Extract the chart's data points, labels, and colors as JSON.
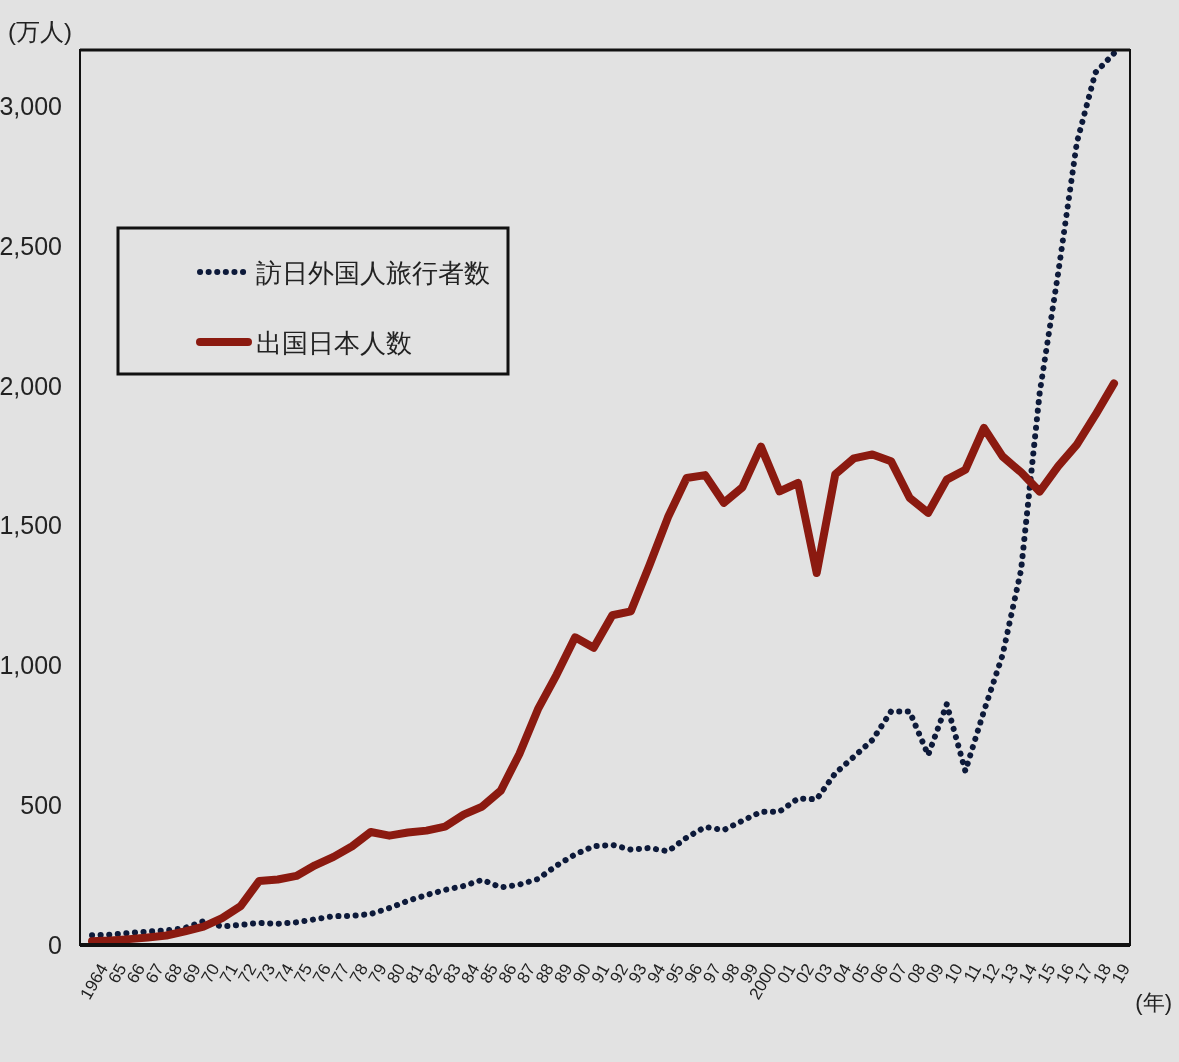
{
  "chart_data": {
    "type": "line",
    "ylabel": "(万人)",
    "xlabel": "(年)",
    "categories": [
      "1964",
      "65",
      "66",
      "67",
      "68",
      "69",
      "70",
      "71",
      "72",
      "73",
      "74",
      "75",
      "76",
      "77",
      "78",
      "79",
      "80",
      "81",
      "82",
      "83",
      "84",
      "85",
      "86",
      "87",
      "88",
      "89",
      "90",
      "91",
      "92",
      "93",
      "94",
      "95",
      "96",
      "97",
      "98",
      "99",
      "2000",
      "01",
      "02",
      "03",
      "04",
      "05",
      "06",
      "07",
      "08",
      "09",
      "10",
      "11",
      "12",
      "13",
      "14",
      "15",
      "16",
      "17",
      "18",
      "19"
    ],
    "ylim": [
      0,
      3200
    ],
    "yticks": [
      0,
      500,
      {
        "value": 1000,
        "label": "1,000"
      },
      {
        "value": 1500,
        "label": "1,500"
      },
      {
        "value": 2000,
        "label": "2,000"
      },
      {
        "value": 2500,
        "label": "2,500"
      },
      {
        "value": 3000,
        "label": "3,000"
      }
    ],
    "grid": false,
    "legend": "top left",
    "marker": "none",
    "series": [
      {
        "name": "訪日外国人旅行者数",
        "color": "#0d1a3a",
        "line_style": "dotted",
        "values": [
          35,
          37,
          43,
          48,
          52,
          61,
          85,
          66,
          72,
          79,
          76,
          81,
          92,
          103,
          104,
          111,
          132,
          158,
          179,
          197,
          211,
          233,
          206,
          216,
          236,
          284,
          324,
          353,
          358,
          341,
          347,
          335,
          384,
          422,
          411,
          444,
          476,
          477,
          524,
          521,
          614,
          673,
          733,
          835,
          835,
          679,
          861,
          622,
          836,
          1036,
          1341,
          1974,
          2404,
          2869,
          3119,
          3188
        ]
      },
      {
        "name": "出国日本人数",
        "color": "#8b1a10",
        "line_style": "solid",
        "values": [
          13,
          16,
          21,
          27,
          34,
          49,
          66,
          96,
          139,
          229,
          234,
          247,
          285,
          315,
          353,
          404,
          391,
          402,
          409,
          423,
          466,
          495,
          552,
          683,
          843,
          966,
          1100,
          1063,
          1179,
          1193,
          1358,
          1530,
          1670,
          1680,
          1581,
          1636,
          1782,
          1622,
          1652,
          1330,
          1683,
          1740,
          1754,
          1730,
          1599,
          1545,
          1664,
          1699,
          1849,
          1747,
          1690,
          1621,
          1712,
          1789,
          1895,
          2008
        ]
      }
    ]
  }
}
